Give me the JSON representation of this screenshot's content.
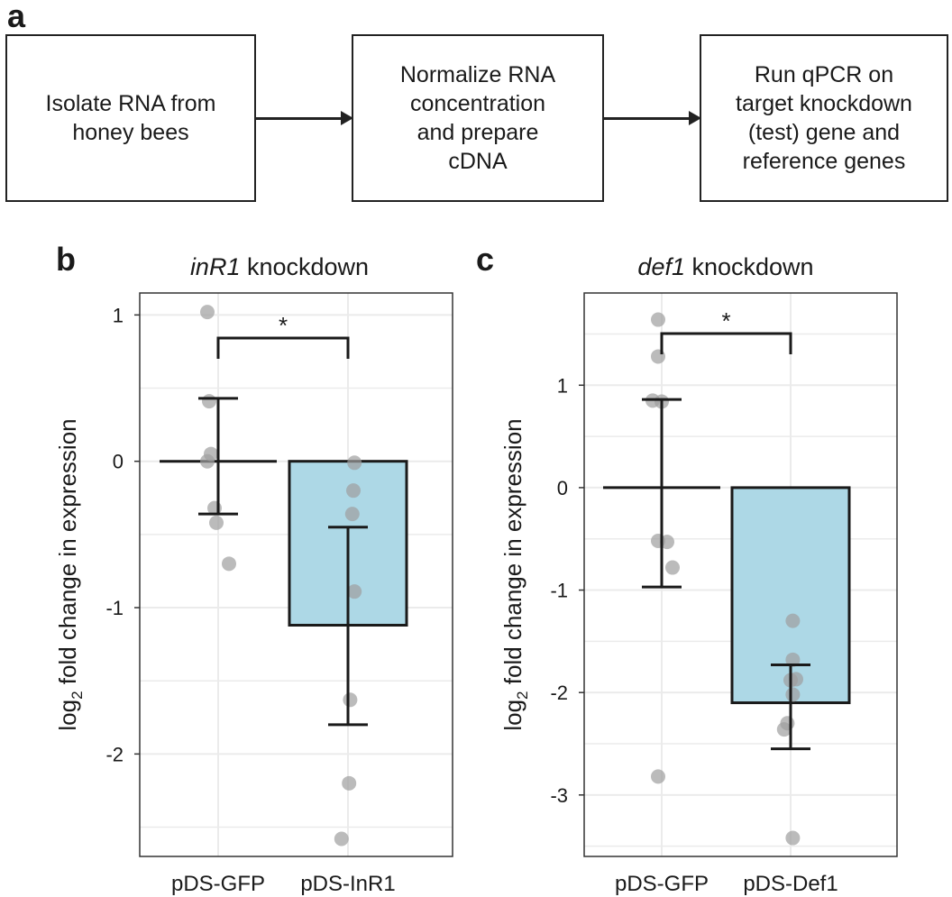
{
  "panel_a": {
    "letter": "a",
    "steps": [
      "Isolate RNA from\nhoney bees",
      "Normalize RNA\nconcentration\nand prepare\ncDNA",
      "Run qPCR on\ntarget knockdown\n(test) gene and\nreference genes"
    ]
  },
  "chart_data": [
    {
      "panel": "b",
      "type": "bar",
      "title_gene": "inR1",
      "title_rest": " knockdown",
      "ylabel_prefix": "log",
      "ylabel_sub": "2",
      "ylabel_rest": " fold change in expression",
      "categories": [
        "pDS-GFP",
        "pDS-InR1"
      ],
      "values": [
        0,
        -1.12
      ],
      "error_bars": [
        [
          -0.36,
          0.43
        ],
        [
          -1.8,
          -0.45
        ]
      ],
      "points": [
        [
          1.02,
          0.41,
          0.05,
          0.0,
          -0.32,
          -0.42,
          -0.7
        ],
        [
          -0.01,
          -0.2,
          -0.36,
          -0.89,
          -1.63,
          -2.2,
          -2.58
        ]
      ],
      "ylim": [
        -2.7,
        1.15
      ],
      "yticks": [
        1,
        0,
        -1,
        -2
      ],
      "ytick_labels": [
        "1",
        "0",
        "-1",
        "-2"
      ],
      "bar_color": "#add8e6",
      "significance": "*"
    },
    {
      "panel": "c",
      "type": "bar",
      "title_gene": "def1",
      "title_rest": " knockdown",
      "ylabel_prefix": "log",
      "ylabel_sub": "2",
      "ylabel_rest": " fold change in expression",
      "categories": [
        "pDS-GFP",
        "pDS-Def1"
      ],
      "values": [
        0,
        -2.1
      ],
      "error_bars": [
        [
          -0.97,
          0.86
        ],
        [
          -2.55,
          -1.73
        ]
      ],
      "points": [
        [
          1.64,
          1.28,
          0.85,
          0.84,
          -0.52,
          -0.53,
          -0.78,
          -2.82
        ],
        [
          -1.3,
          -1.68,
          -1.87,
          -1.88,
          -2.02,
          -2.3,
          -2.36,
          -3.42
        ]
      ],
      "ylim": [
        -3.6,
        1.9
      ],
      "yticks": [
        1,
        0,
        -1,
        -2,
        -3
      ],
      "ytick_labels": [
        "1",
        "0",
        "-1",
        "-2",
        "-3"
      ],
      "bar_color": "#add8e6",
      "significance": "*"
    }
  ]
}
